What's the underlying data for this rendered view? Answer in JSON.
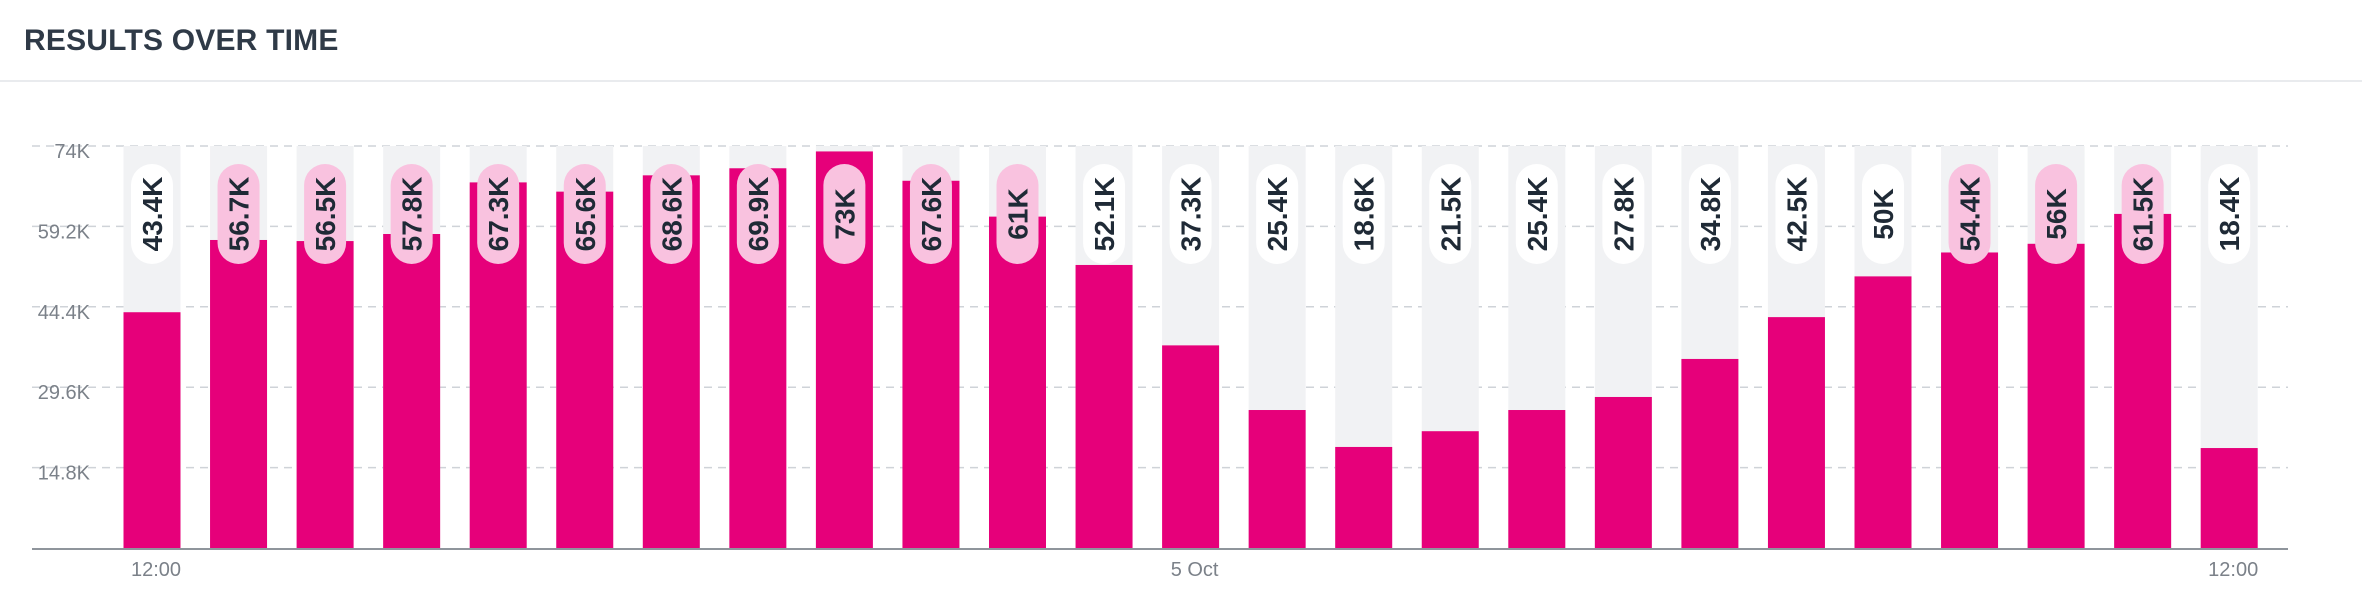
{
  "header": {
    "title": "RESULTS OVER TIME"
  },
  "colors": {
    "bar": "#e6007a",
    "bar_track": "#f1f2f4",
    "pill": "#ffffff",
    "pill_overlap": "#f9c2df",
    "grid": "#cfd3d8",
    "axis": "#8f959c"
  },
  "chart_data": {
    "type": "bar",
    "title": "RESULTS OVER TIME",
    "xlabel": "",
    "ylabel": "",
    "ylim": [
      0,
      74000
    ],
    "yticks": [
      14800,
      29600,
      44400,
      59200,
      74000
    ],
    "ytick_labels": [
      "14.8K",
      "29.6K",
      "44.4K",
      "59.2K",
      "74K"
    ],
    "grid": true,
    "legend": "none",
    "x_tick_labels": [
      {
        "index": 0,
        "label": "12:00"
      },
      {
        "index": 12,
        "label": "5 Oct"
      },
      {
        "index": 24,
        "label": "12:00"
      }
    ],
    "values": [
      43400,
      56700,
      56500,
      57800,
      67300,
      65600,
      68600,
      69900,
      73000,
      67600,
      61000,
      52100,
      37300,
      25400,
      18600,
      21500,
      25400,
      27800,
      34800,
      42500,
      50000,
      54400,
      56000,
      61500,
      18400
    ],
    "value_labels": [
      "43.4K",
      "56.7K",
      "56.5K",
      "57.8K",
      "67.3K",
      "65.6K",
      "68.6K",
      "69.9K",
      "73K",
      "67.6K",
      "61K",
      "52.1K",
      "37.3K",
      "25.4K",
      "18.6K",
      "21.5K",
      "25.4K",
      "27.8K",
      "34.8K",
      "42.5K",
      "50K",
      "54.4K",
      "56K",
      "61.5K",
      "18.4K"
    ]
  }
}
